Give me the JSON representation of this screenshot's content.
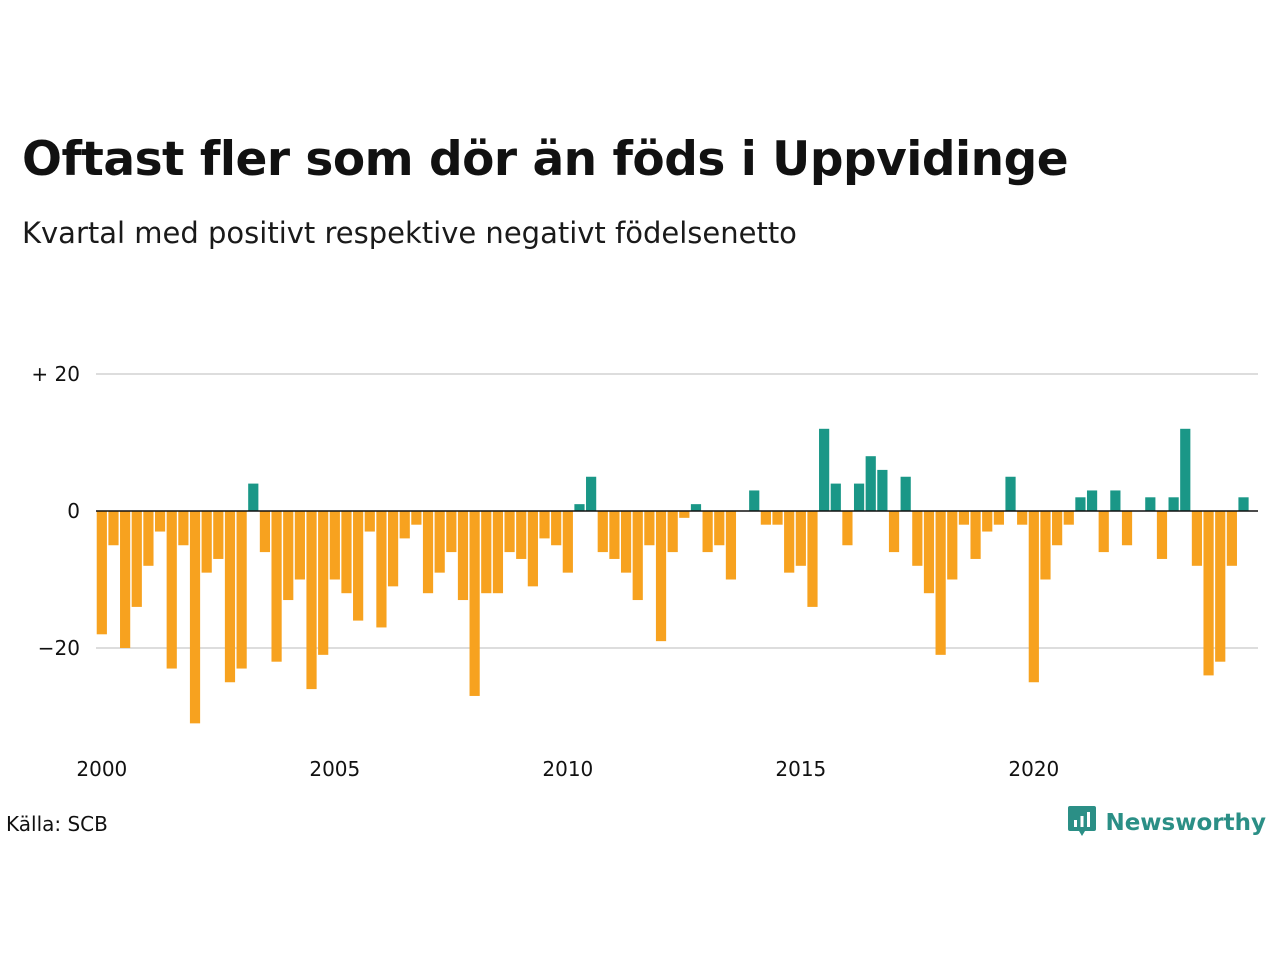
{
  "title": "Oftast fler som dör än föds i Uppvidinge",
  "subtitle": "Kvartal med positivt respektive negativt födelsenetto",
  "source": "Källa: SCB",
  "brand": {
    "name": "Newsworthy",
    "logo_icon": "newsworthy-logo-icon"
  },
  "colors": {
    "positive": "#1a9787",
    "negative": "#f7a21f",
    "gridline": "#dddddd",
    "zero_line": "#111111"
  },
  "chart_data": {
    "type": "bar",
    "x_start": "2000 Q1",
    "frequency": "quarterly",
    "x_ticks": [
      "2000",
      "2005",
      "2010",
      "2015",
      "2020"
    ],
    "y_ticks": [
      {
        "value": 20,
        "label": "+ 20"
      },
      {
        "value": 0,
        "label": "0"
      },
      {
        "value": -20,
        "label": "−20"
      }
    ],
    "ylim": [
      -32,
      22
    ],
    "grid": true,
    "values": [
      -18,
      -5,
      -20,
      -14,
      -8,
      -3,
      -23,
      -5,
      -31,
      -9,
      -7,
      -25,
      -23,
      4,
      -6,
      -22,
      -13,
      -10,
      -26,
      -21,
      -10,
      -12,
      -16,
      -3,
      -17,
      -11,
      -4,
      -2,
      -12,
      -9,
      -6,
      -13,
      -27,
      -12,
      -12,
      -6,
      -7,
      -11,
      -4,
      -5,
      -9,
      1,
      5,
      -6,
      -7,
      -9,
      -13,
      -5,
      -19,
      -6,
      -1,
      1,
      -6,
      -5,
      -10,
      0,
      3,
      -2,
      -2,
      -9,
      -8,
      -14,
      12,
      4,
      -5,
      4,
      8,
      6,
      -6,
      5,
      -8,
      -12,
      -21,
      -10,
      -2,
      -7,
      -3,
      -2,
      5,
      -2,
      -25,
      -10,
      -5,
      -2,
      2,
      3,
      -6,
      3,
      -5,
      0,
      2,
      -7,
      2,
      12,
      -8,
      -24,
      -22,
      -8,
      2
    ]
  }
}
